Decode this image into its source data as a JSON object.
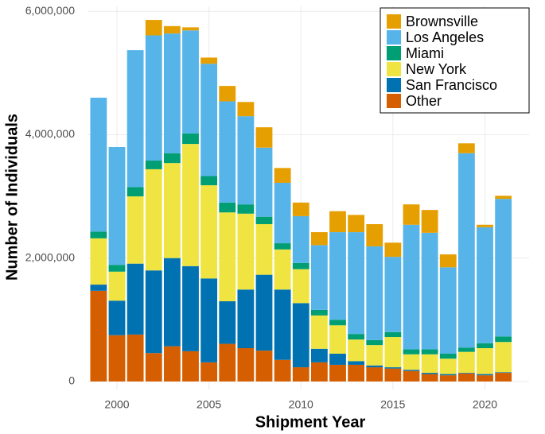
{
  "chart_data": {
    "type": "stacked_bar",
    "xlabel": "Shipment Year",
    "ylabel": "Number of Individuals",
    "x": [
      1999,
      2000,
      2001,
      2002,
      2003,
      2004,
      2005,
      2006,
      2007,
      2008,
      2009,
      2010,
      2011,
      2012,
      2013,
      2014,
      2015,
      2016,
      2017,
      2018,
      2019,
      2020,
      2021
    ],
    "xlim": [
      1998.4,
      2022.4
    ],
    "xticks": [
      2000,
      2005,
      2010,
      2015,
      2020
    ],
    "ylim": [
      -130000,
      6080000
    ],
    "yticks": [
      0,
      {
        "value": 2000000,
        "label": "2,000,000"
      },
      {
        "value": 4000000,
        "label": "4,000,000"
      },
      {
        "value": 6000000,
        "label": "6,000,000"
      }
    ],
    "grid": true,
    "legend": "top-right",
    "series": [
      {
        "name": "Brownsville",
        "color": "#E69F00",
        "values": [
          0,
          0,
          0,
          250000,
          120000,
          50000,
          100000,
          250000,
          230000,
          330000,
          240000,
          220000,
          210000,
          340000,
          280000,
          360000,
          230000,
          330000,
          370000,
          210000,
          160000,
          40000,
          50000
        ]
      },
      {
        "name": "Los Angeles",
        "color": "#56B4E9",
        "values": [
          2170000,
          1910000,
          2220000,
          2030000,
          1940000,
          1670000,
          1820000,
          1640000,
          1430000,
          1120000,
          980000,
          760000,
          1050000,
          1420000,
          1650000,
          1520000,
          1220000,
          2020000,
          1890000,
          1400000,
          3150000,
          1880000,
          2230000
        ]
      },
      {
        "name": "Miami",
        "color": "#009E73",
        "values": [
          110000,
          110000,
          150000,
          140000,
          160000,
          170000,
          150000,
          160000,
          150000,
          120000,
          100000,
          100000,
          90000,
          90000,
          90000,
          80000,
          80000,
          80000,
          80000,
          80000,
          70000,
          80000,
          90000
        ]
      },
      {
        "name": "New York",
        "color": "#F0E442",
        "values": [
          750000,
          470000,
          1090000,
          1640000,
          1540000,
          1980000,
          1510000,
          1440000,
          1230000,
          820000,
          650000,
          550000,
          540000,
          460000,
          350000,
          330000,
          490000,
          250000,
          300000,
          250000,
          340000,
          420000,
          490000
        ]
      },
      {
        "name": "San Francisco",
        "color": "#0072B2",
        "values": [
          100000,
          560000,
          1150000,
          1340000,
          1430000,
          1380000,
          1360000,
          690000,
          950000,
          1230000,
          1140000,
          1040000,
          220000,
          180000,
          60000,
          30000,
          20000,
          20000,
          20000,
          20000,
          10000,
          20000,
          10000
        ]
      },
      {
        "name": "Other",
        "color": "#D55E00",
        "values": [
          1470000,
          750000,
          760000,
          460000,
          570000,
          490000,
          310000,
          610000,
          540000,
          500000,
          350000,
          230000,
          310000,
          270000,
          270000,
          230000,
          210000,
          170000,
          120000,
          100000,
          130000,
          100000,
          140000
        ]
      }
    ]
  }
}
